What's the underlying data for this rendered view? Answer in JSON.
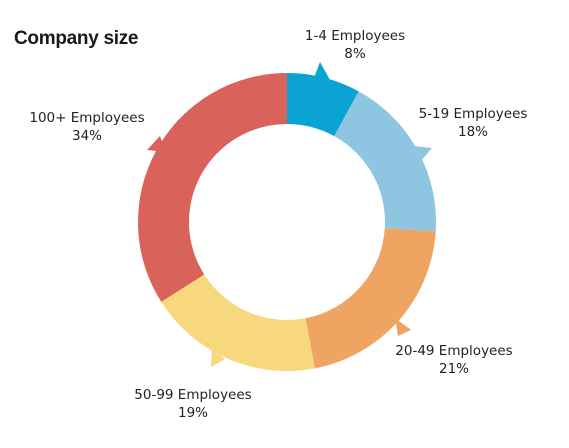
{
  "chart_data": {
    "type": "donut",
    "title": "Company size",
    "categories": [
      "1-4 Employees",
      "5-19 Employees",
      "20-49 Employees",
      "50-99 Employees",
      "100+ Employees"
    ],
    "values": [
      8,
      18,
      21,
      19,
      34
    ],
    "value_labels": [
      "8%",
      "18%",
      "21%",
      "19%",
      "34%"
    ],
    "unit": "%",
    "colors": [
      "#0ba3d4",
      "#8ec6e1",
      "#f0a462",
      "#f8d87c",
      "#d9625a"
    ],
    "start": "12 o'clock",
    "direction": "clockwise",
    "legend": "none"
  }
}
